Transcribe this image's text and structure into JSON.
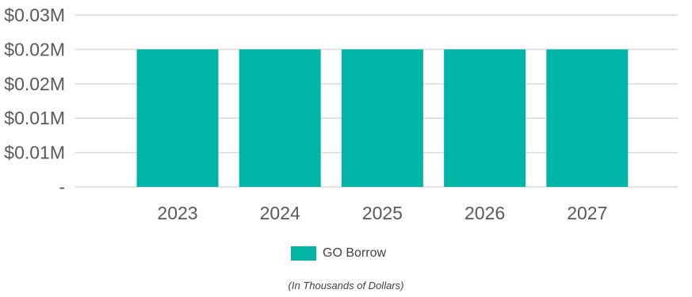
{
  "chart_data": {
    "type": "bar",
    "categories": [
      "2023",
      "2024",
      "2025",
      "2026",
      "2027"
    ],
    "series": [
      {
        "name": "GO Borrow",
        "values": [
          0.02,
          0.02,
          0.02,
          0.02,
          0.02
        ],
        "color": "#00B5A5"
      }
    ],
    "y_ticks": [
      {
        "value": 0,
        "label": "-"
      },
      {
        "value": 0.005,
        "label": "$0.01M"
      },
      {
        "value": 0.01,
        "label": "$0.01M"
      },
      {
        "value": 0.015,
        "label": "$0.02M"
      },
      {
        "value": 0.02,
        "label": "$0.02M"
      },
      {
        "value": 0.025,
        "label": "$0.03M"
      }
    ],
    "ylim": [
      0,
      0.025
    ],
    "grid": true,
    "legend_position": "bottom",
    "footnote": "(In Thousands of Dollars)",
    "colors": {
      "grid": "#D9D9D9",
      "tick_text": "#595959"
    }
  }
}
